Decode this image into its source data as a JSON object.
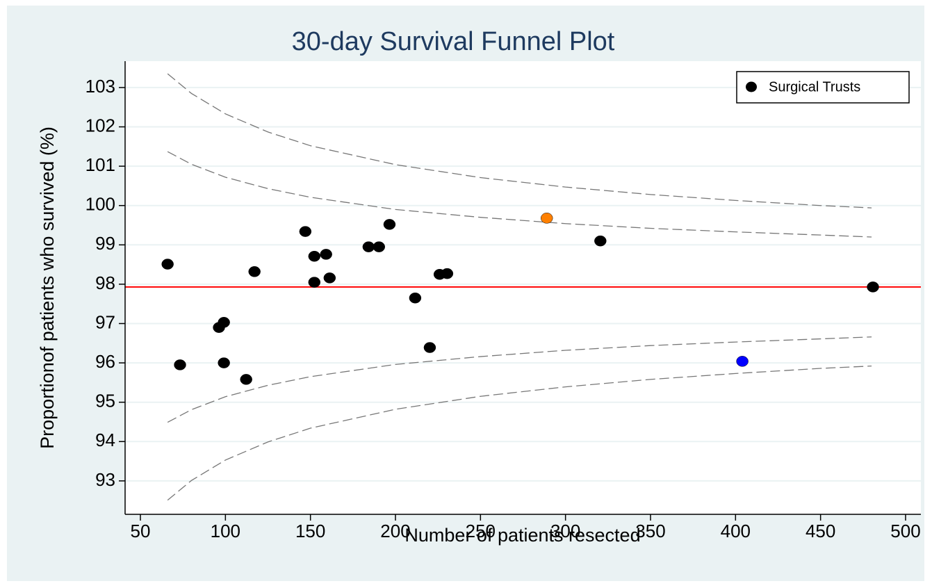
{
  "chart_data": {
    "type": "scatter",
    "title": "30-day Survival Funnel Plot",
    "x_label": "Number of patients resected",
    "y_label": "Proportionof patients who survived (%)",
    "xlim": [
      41,
      509
    ],
    "ylim": [
      92.15,
      103.67
    ],
    "xticks": [
      50,
      100,
      150,
      200,
      250,
      300,
      350,
      400,
      450,
      500
    ],
    "yticks": [
      93,
      94,
      95,
      96,
      97,
      98,
      99,
      100,
      101,
      102,
      103
    ],
    "grid": true,
    "legend": "top-right",
    "series": [
      {
        "name": "Surgical Trusts",
        "color": "#000000",
        "x": [
          66,
          73.3,
          96.2,
          99.1,
          99.1,
          112.2,
          117.1,
          147,
          152.3,
          152.3,
          159.2,
          161.3,
          184.2,
          190.3,
          196.5,
          211.6,
          220.2,
          226,
          230.4,
          289,
          320.5,
          404,
          480.8
        ],
        "values": [
          98.51,
          95.95,
          96.9,
          97.03,
          96.0,
          95.58,
          98.32,
          99.34,
          98.71,
          98.05,
          98.76,
          98.16,
          98.95,
          98.95,
          99.52,
          97.65,
          96.39,
          98.25,
          98.27,
          99.68,
          99.1,
          96.04,
          97.93
        ],
        "point_colors": [
          "#000000",
          "#000000",
          "#000000",
          "#000000",
          "#000000",
          "#000000",
          "#000000",
          "#000000",
          "#000000",
          "#000000",
          "#000000",
          "#000000",
          "#000000",
          "#000000",
          "#000000",
          "#000000",
          "#000000",
          "#000000",
          "#000000",
          "#ff8000",
          "#000000",
          "#0000ff",
          "#000000"
        ]
      }
    ],
    "reference_line": {
      "value": 97.93,
      "color": "#ff0000"
    },
    "limit_x": [
      66,
      80,
      100,
      125,
      150,
      200,
      250,
      300,
      350,
      400,
      450,
      480
    ],
    "limit_lines": [
      {
        "color": "#777777",
        "values": [
          103.35,
          102.85,
          102.33,
          101.87,
          101.52,
          101.04,
          100.71,
          100.47,
          100.28,
          100.13,
          100.0,
          99.94
        ]
      },
      {
        "color": "#777777",
        "values": [
          101.37,
          101.05,
          100.72,
          100.43,
          100.21,
          99.9,
          99.7,
          99.54,
          99.42,
          99.33,
          99.25,
          99.2
        ]
      },
      {
        "color": "#777777",
        "values": [
          94.49,
          94.81,
          95.14,
          95.43,
          95.65,
          95.96,
          96.16,
          96.32,
          96.44,
          96.53,
          96.61,
          96.66
        ]
      },
      {
        "color": "#777777",
        "values": [
          92.51,
          93.01,
          93.53,
          93.99,
          94.34,
          94.82,
          95.15,
          95.39,
          95.58,
          95.73,
          95.86,
          95.92
        ]
      }
    ]
  }
}
